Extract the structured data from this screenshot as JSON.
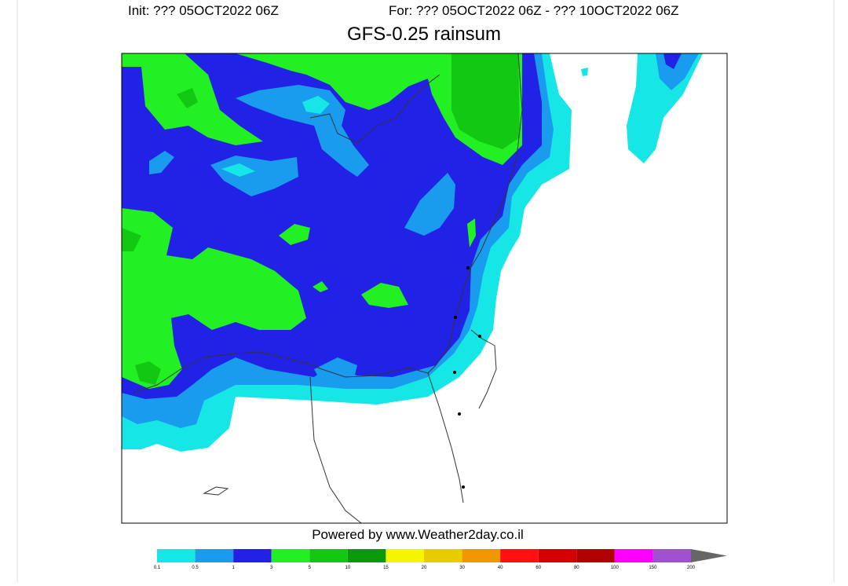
{
  "header": {
    "init": "Init: ??? 05OCT2022 06Z",
    "valid": "For: ??? 05OCT2022 06Z - ??? 10OCT2022 06Z",
    "title": "GFS-0.25 rainsum"
  },
  "footer": "Powered by www.Weather2day.co.il",
  "colorbar": {
    "levels": [
      0.1,
      0.5,
      1,
      3,
      5,
      10,
      15,
      20,
      30,
      40,
      60,
      80,
      100,
      150,
      200
    ],
    "colors": [
      "#16e6e6",
      "#1a9cee",
      "#2222e6",
      "#22f022",
      "#12c812",
      "#0c9a0c",
      "#f5f500",
      "#e6cc00",
      "#f09600",
      "#ff1010",
      "#d40000",
      "#b00000",
      "#ff00ff",
      "#a050d0"
    ]
  }
}
